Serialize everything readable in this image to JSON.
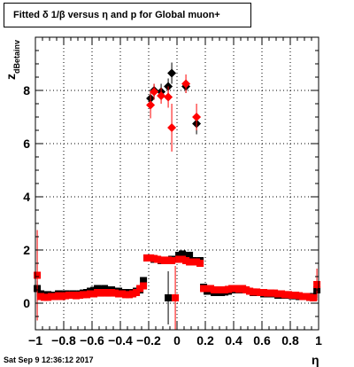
{
  "title": "Fitted δ 1/β versus η and p for Global muon+",
  "footer": "Sat Sep  9 12:36:12 2017",
  "chart_data": {
    "type": "scatter",
    "title": "Fitted δ 1/β versus η and p for Global muon+",
    "xlabel": "η",
    "ylabel": "z",
    "ylabel_subscript": "dBetainv",
    "xlim": [
      -1,
      1
    ],
    "ylim": [
      -1,
      10
    ],
    "grid": true,
    "x_ticks": [
      "−1",
      "−0.8",
      "−0.6",
      "−0.4",
      "−0.2",
      "0",
      "0.2",
      "0.4",
      "0.6",
      "0.8",
      "1"
    ],
    "x_tick_values": [
      -1,
      -0.8,
      -0.6,
      -0.4,
      -0.2,
      0,
      0.2,
      0.4,
      0.6,
      0.8,
      1
    ],
    "y_ticks": [
      "0",
      "2",
      "4",
      "6",
      "8"
    ],
    "y_tick_values": [
      0,
      2,
      4,
      6,
      8
    ],
    "series": [
      {
        "color": "#000000",
        "marker": "square",
        "points": [
          {
            "x": -0.987,
            "y": 0.55,
            "err": 0.3
          },
          {
            "x": -0.962,
            "y": 0.35,
            "err": 0.1
          },
          {
            "x": -0.937,
            "y": 0.3,
            "err": 0.1
          },
          {
            "x": -0.912,
            "y": 0.32,
            "err": 0.1
          },
          {
            "x": -0.887,
            "y": 0.3,
            "err": 0.08
          },
          {
            "x": -0.862,
            "y": 0.3,
            "err": 0.08
          },
          {
            "x": -0.837,
            "y": 0.35,
            "err": 0.08
          },
          {
            "x": -0.812,
            "y": 0.3,
            "err": 0.08
          },
          {
            "x": -0.787,
            "y": 0.35,
            "err": 0.08
          },
          {
            "x": -0.762,
            "y": 0.3,
            "err": 0.08
          },
          {
            "x": -0.737,
            "y": 0.35,
            "err": 0.08
          },
          {
            "x": -0.712,
            "y": 0.3,
            "err": 0.08
          },
          {
            "x": -0.687,
            "y": 0.35,
            "err": 0.08
          },
          {
            "x": -0.662,
            "y": 0.38,
            "err": 0.08
          },
          {
            "x": -0.637,
            "y": 0.4,
            "err": 0.08
          },
          {
            "x": -0.612,
            "y": 0.45,
            "err": 0.08
          },
          {
            "x": -0.587,
            "y": 0.48,
            "err": 0.08
          },
          {
            "x": -0.562,
            "y": 0.55,
            "err": 0.08
          },
          {
            "x": -0.537,
            "y": 0.5,
            "err": 0.08
          },
          {
            "x": -0.512,
            "y": 0.55,
            "err": 0.08
          },
          {
            "x": -0.487,
            "y": 0.5,
            "err": 0.08
          },
          {
            "x": -0.462,
            "y": 0.5,
            "err": 0.08
          },
          {
            "x": -0.437,
            "y": 0.45,
            "err": 0.08
          },
          {
            "x": -0.412,
            "y": 0.45,
            "err": 0.08
          },
          {
            "x": -0.387,
            "y": 0.4,
            "err": 0.08
          },
          {
            "x": -0.362,
            "y": 0.4,
            "err": 0.08
          },
          {
            "x": -0.337,
            "y": 0.38,
            "err": 0.08
          },
          {
            "x": -0.312,
            "y": 0.4,
            "err": 0.08
          },
          {
            "x": -0.287,
            "y": 0.45,
            "err": 0.08
          },
          {
            "x": -0.262,
            "y": 0.5,
            "err": 0.08
          },
          {
            "x": -0.237,
            "y": 0.85,
            "err": 0.1
          },
          {
            "x": -0.212,
            "y": 1.7,
            "err": 0.05
          },
          {
            "x": -0.187,
            "y": 1.7,
            "err": 0.05
          },
          {
            "x": -0.162,
            "y": 1.65,
            "err": 0.05
          },
          {
            "x": -0.137,
            "y": 1.65,
            "err": 0.05
          },
          {
            "x": -0.112,
            "y": 1.6,
            "err": 0.05
          },
          {
            "x": -0.087,
            "y": 1.6,
            "err": 0.05
          },
          {
            "x": -0.062,
            "y": 0.2,
            "err": 1.0
          },
          {
            "x": -0.037,
            "y": 1.65,
            "err": 0.05
          },
          {
            "x": -0.012,
            "y": 1.65,
            "err": 0.05
          },
          {
            "x": 0.013,
            "y": 1.8,
            "err": 0.1
          },
          {
            "x": 0.038,
            "y": 1.85,
            "err": 0.05
          },
          {
            "x": 0.063,
            "y": 1.75,
            "err": 0.05
          },
          {
            "x": 0.088,
            "y": 1.8,
            "err": 0.05
          },
          {
            "x": 0.113,
            "y": 1.6,
            "err": 0.05
          },
          {
            "x": 0.138,
            "y": 1.55,
            "err": 0.05
          },
          {
            "x": 0.163,
            "y": 1.6,
            "err": 0.05
          },
          {
            "x": 0.188,
            "y": 0.6,
            "err": 0.1
          },
          {
            "x": 0.213,
            "y": 0.45,
            "err": 0.08
          },
          {
            "x": 0.238,
            "y": 0.45,
            "err": 0.08
          },
          {
            "x": 0.263,
            "y": 0.4,
            "err": 0.08
          },
          {
            "x": 0.288,
            "y": 0.4,
            "err": 0.08
          },
          {
            "x": 0.313,
            "y": 0.4,
            "err": 0.08
          },
          {
            "x": 0.338,
            "y": 0.42,
            "err": 0.08
          },
          {
            "x": 0.363,
            "y": 0.45,
            "err": 0.08
          },
          {
            "x": 0.388,
            "y": 0.5,
            "err": 0.08
          },
          {
            "x": 0.413,
            "y": 0.5,
            "err": 0.08
          },
          {
            "x": 0.438,
            "y": 0.5,
            "err": 0.08
          },
          {
            "x": 0.463,
            "y": 0.55,
            "err": 0.08
          },
          {
            "x": 0.488,
            "y": 0.5,
            "err": 0.08
          },
          {
            "x": 0.513,
            "y": 0.45,
            "err": 0.08
          },
          {
            "x": 0.538,
            "y": 0.4,
            "err": 0.08
          },
          {
            "x": 0.563,
            "y": 0.4,
            "err": 0.08
          },
          {
            "x": 0.588,
            "y": 0.4,
            "err": 0.08
          },
          {
            "x": 0.613,
            "y": 0.35,
            "err": 0.08
          },
          {
            "x": 0.638,
            "y": 0.35,
            "err": 0.08
          },
          {
            "x": 0.663,
            "y": 0.35,
            "err": 0.08
          },
          {
            "x": 0.688,
            "y": 0.35,
            "err": 0.08
          },
          {
            "x": 0.713,
            "y": 0.3,
            "err": 0.08
          },
          {
            "x": 0.738,
            "y": 0.3,
            "err": 0.08
          },
          {
            "x": 0.763,
            "y": 0.3,
            "err": 0.08
          },
          {
            "x": 0.788,
            "y": 0.3,
            "err": 0.08
          },
          {
            "x": 0.813,
            "y": 0.28,
            "err": 0.08
          },
          {
            "x": 0.838,
            "y": 0.28,
            "err": 0.08
          },
          {
            "x": 0.863,
            "y": 0.25,
            "err": 0.08
          },
          {
            "x": 0.888,
            "y": 0.25,
            "err": 0.08
          },
          {
            "x": 0.913,
            "y": 0.25,
            "err": 0.08
          },
          {
            "x": 0.938,
            "y": 0.22,
            "err": 0.08
          },
          {
            "x": 0.963,
            "y": 0.25,
            "err": 0.08
          },
          {
            "x": 0.988,
            "y": 0.5,
            "err": 0.3
          }
        ]
      },
      {
        "color": "#ff0000",
        "marker": "square",
        "points": [
          {
            "x": -0.987,
            "y": 1.05,
            "err": 1.7
          },
          {
            "x": -0.962,
            "y": 0.25,
            "err": 0.1
          },
          {
            "x": -0.937,
            "y": 0.22,
            "err": 0.1
          },
          {
            "x": -0.912,
            "y": 0.22,
            "err": 0.1
          },
          {
            "x": -0.887,
            "y": 0.25,
            "err": 0.08
          },
          {
            "x": -0.862,
            "y": 0.25,
            "err": 0.08
          },
          {
            "x": -0.837,
            "y": 0.28,
            "err": 0.08
          },
          {
            "x": -0.812,
            "y": 0.25,
            "err": 0.08
          },
          {
            "x": -0.787,
            "y": 0.28,
            "err": 0.08
          },
          {
            "x": -0.762,
            "y": 0.3,
            "err": 0.08
          },
          {
            "x": -0.737,
            "y": 0.3,
            "err": 0.08
          },
          {
            "x": -0.712,
            "y": 0.28,
            "err": 0.08
          },
          {
            "x": -0.687,
            "y": 0.3,
            "err": 0.08
          },
          {
            "x": -0.662,
            "y": 0.32,
            "err": 0.08
          },
          {
            "x": -0.637,
            "y": 0.32,
            "err": 0.08
          },
          {
            "x": -0.612,
            "y": 0.35,
            "err": 0.08
          },
          {
            "x": -0.587,
            "y": 0.35,
            "err": 0.08
          },
          {
            "x": -0.562,
            "y": 0.4,
            "err": 0.08
          },
          {
            "x": -0.537,
            "y": 0.38,
            "err": 0.08
          },
          {
            "x": -0.512,
            "y": 0.4,
            "err": 0.08
          },
          {
            "x": -0.487,
            "y": 0.38,
            "err": 0.08
          },
          {
            "x": -0.462,
            "y": 0.4,
            "err": 0.08
          },
          {
            "x": -0.437,
            "y": 0.38,
            "err": 0.08
          },
          {
            "x": -0.412,
            "y": 0.35,
            "err": 0.08
          },
          {
            "x": -0.387,
            "y": 0.35,
            "err": 0.08
          },
          {
            "x": -0.362,
            "y": 0.32,
            "err": 0.08
          },
          {
            "x": -0.337,
            "y": 0.32,
            "err": 0.08
          },
          {
            "x": -0.312,
            "y": 0.35,
            "err": 0.08
          },
          {
            "x": -0.287,
            "y": 0.4,
            "err": 0.08
          },
          {
            "x": -0.262,
            "y": 0.55,
            "err": 0.08
          },
          {
            "x": -0.237,
            "y": 0.65,
            "err": 0.1
          },
          {
            "x": -0.212,
            "y": 1.7,
            "err": 0.05
          },
          {
            "x": -0.187,
            "y": 1.7,
            "err": 0.05
          },
          {
            "x": -0.162,
            "y": 1.68,
            "err": 0.05
          },
          {
            "x": -0.137,
            "y": 1.65,
            "err": 0.05
          },
          {
            "x": -0.112,
            "y": 1.62,
            "err": 0.05
          },
          {
            "x": -0.087,
            "y": 1.6,
            "err": 0.05
          },
          {
            "x": -0.062,
            "y": 1.62,
            "err": 0.05
          },
          {
            "x": -0.037,
            "y": 1.6,
            "err": 0.05
          },
          {
            "x": -0.012,
            "y": 0.2,
            "err": 1.2
          },
          {
            "x": 0.013,
            "y": 1.65,
            "err": 0.05
          },
          {
            "x": 0.038,
            "y": 1.65,
            "err": 0.05
          },
          {
            "x": 0.063,
            "y": 1.6,
            "err": 0.05
          },
          {
            "x": 0.088,
            "y": 1.55,
            "err": 0.05
          },
          {
            "x": 0.113,
            "y": 1.55,
            "err": 0.05
          },
          {
            "x": 0.138,
            "y": 1.55,
            "err": 0.05
          },
          {
            "x": 0.163,
            "y": 1.5,
            "err": 0.05
          },
          {
            "x": 0.188,
            "y": 0.55,
            "err": 0.1
          },
          {
            "x": 0.213,
            "y": 0.55,
            "err": 0.08
          },
          {
            "x": 0.238,
            "y": 0.55,
            "err": 0.08
          },
          {
            "x": 0.263,
            "y": 0.5,
            "err": 0.08
          },
          {
            "x": 0.288,
            "y": 0.5,
            "err": 0.08
          },
          {
            "x": 0.313,
            "y": 0.5,
            "err": 0.08
          },
          {
            "x": 0.338,
            "y": 0.5,
            "err": 0.08
          },
          {
            "x": 0.363,
            "y": 0.52,
            "err": 0.08
          },
          {
            "x": 0.388,
            "y": 0.55,
            "err": 0.08
          },
          {
            "x": 0.413,
            "y": 0.55,
            "err": 0.08
          },
          {
            "x": 0.438,
            "y": 0.52,
            "err": 0.08
          },
          {
            "x": 0.463,
            "y": 0.55,
            "err": 0.08
          },
          {
            "x": 0.488,
            "y": 0.5,
            "err": 0.08
          },
          {
            "x": 0.513,
            "y": 0.45,
            "err": 0.08
          },
          {
            "x": 0.538,
            "y": 0.42,
            "err": 0.08
          },
          {
            "x": 0.563,
            "y": 0.42,
            "err": 0.08
          },
          {
            "x": 0.588,
            "y": 0.4,
            "err": 0.08
          },
          {
            "x": 0.613,
            "y": 0.4,
            "err": 0.08
          },
          {
            "x": 0.638,
            "y": 0.38,
            "err": 0.08
          },
          {
            "x": 0.663,
            "y": 0.38,
            "err": 0.08
          },
          {
            "x": 0.688,
            "y": 0.38,
            "err": 0.08
          },
          {
            "x": 0.713,
            "y": 0.35,
            "err": 0.08
          },
          {
            "x": 0.738,
            "y": 0.35,
            "err": 0.08
          },
          {
            "x": 0.763,
            "y": 0.32,
            "err": 0.08
          },
          {
            "x": 0.788,
            "y": 0.32,
            "err": 0.08
          },
          {
            "x": 0.813,
            "y": 0.3,
            "err": 0.08
          },
          {
            "x": 0.838,
            "y": 0.3,
            "err": 0.08
          },
          {
            "x": 0.863,
            "y": 0.28,
            "err": 0.08
          },
          {
            "x": 0.888,
            "y": 0.25,
            "err": 0.08
          },
          {
            "x": 0.913,
            "y": 0.25,
            "err": 0.08
          },
          {
            "x": 0.938,
            "y": 0.22,
            "err": 0.08
          },
          {
            "x": 0.963,
            "y": 0.2,
            "err": 0.1
          },
          {
            "x": 0.988,
            "y": 0.7,
            "err": 0.6
          }
        ]
      },
      {
        "color": "#000000",
        "marker": "diamond",
        "points": [
          {
            "x": -0.187,
            "y": 7.7,
            "err": 0.3
          },
          {
            "x": -0.162,
            "y": 8.0,
            "err": 0.25
          },
          {
            "x": -0.112,
            "y": 7.95,
            "err": 0.3
          },
          {
            "x": -0.062,
            "y": 8.15,
            "err": 0.3
          },
          {
            "x": -0.037,
            "y": 8.65,
            "err": 0.4
          },
          {
            "x": 0.063,
            "y": 8.15,
            "err": 0.25
          },
          {
            "x": 0.138,
            "y": 6.75,
            "err": 0.4
          }
        ]
      },
      {
        "color": "#ff0000",
        "marker": "diamond",
        "points": [
          {
            "x": -0.187,
            "y": 7.45,
            "err": 0.5
          },
          {
            "x": -0.162,
            "y": 7.95,
            "err": 0.3
          },
          {
            "x": -0.112,
            "y": 7.8,
            "err": 0.3
          },
          {
            "x": -0.062,
            "y": 7.75,
            "err": 0.4
          },
          {
            "x": -0.037,
            "y": 6.6,
            "err": 0.9
          },
          {
            "x": 0.063,
            "y": 8.25,
            "err": 0.35
          },
          {
            "x": 0.138,
            "y": 7.0,
            "err": 0.5
          }
        ]
      }
    ]
  }
}
